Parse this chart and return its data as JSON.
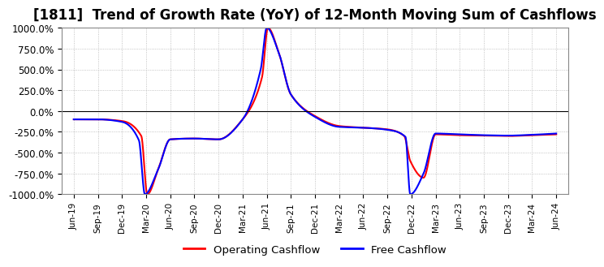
{
  "title": "[1811]  Trend of Growth Rate (YoY) of 12-Month Moving Sum of Cashflows",
  "title_fontsize": 12,
  "ylim": [
    -1000,
    1000
  ],
  "yticks": [
    -1000,
    -750,
    -500,
    -250,
    0,
    250,
    500,
    750,
    1000
  ],
  "ytick_labels": [
    "-1000.0%",
    "-750.0%",
    "-500.0%",
    "-250.0%",
    "0.0%",
    "250.0%",
    "500.0%",
    "750.0%",
    "1000.0%"
  ],
  "xtick_labels": [
    "Jun-19",
    "Sep-19",
    "Dec-19",
    "Mar-20",
    "Jun-20",
    "Sep-20",
    "Dec-20",
    "Mar-21",
    "Jun-21",
    "Sep-21",
    "Dec-21",
    "Mar-22",
    "Jun-22",
    "Sep-22",
    "Dec-22",
    "Mar-23",
    "Jun-23",
    "Sep-23",
    "Dec-23",
    "Mar-24",
    "Jun-24"
  ],
  "legend_labels": [
    "Operating Cashflow",
    "Free Cashflow"
  ],
  "legend_colors": [
    "#ff0000",
    "#0000ff"
  ],
  "background_color": "#ffffff",
  "grid_color": "#aaaaaa",
  "grid_style": "dotted"
}
